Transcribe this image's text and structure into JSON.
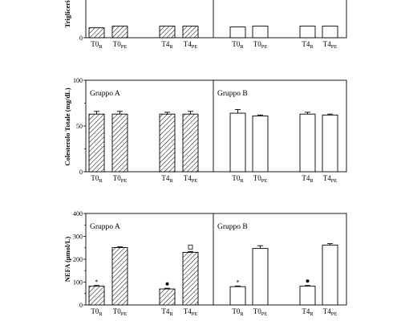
{
  "chart_data": [
    {
      "type": "bar",
      "ylabel": "Trigliceridi",
      "ylim_min": 0,
      "y_ticks": [
        0
      ],
      "group_labels": [
        "",
        ""
      ],
      "categories": [
        "T0",
        "T0",
        "T4",
        "T4"
      ],
      "category_subs": [
        "R",
        "PE",
        "R",
        "PE"
      ],
      "groups": [
        {
          "name": "A",
          "values": [
            12,
            14,
            14,
            14
          ],
          "errors": [
            0,
            0,
            0,
            0
          ],
          "markers": [
            "",
            "",
            "",
            ""
          ]
        },
        {
          "name": "B",
          "values": [
            13,
            14,
            14,
            14
          ],
          "errors": [
            0,
            0,
            0,
            0
          ],
          "markers": [
            "",
            "",
            "",
            ""
          ]
        }
      ],
      "cropped_top": true
    },
    {
      "type": "bar",
      "ylabel": "Colesterolo Totale (mg/dL)",
      "ylim": [
        0,
        100
      ],
      "y_ticks": [
        0,
        50,
        100
      ],
      "group_labels": [
        "Gruppo A",
        "Gruppo B"
      ],
      "categories": [
        "T0",
        "T0",
        "T4",
        "T4"
      ],
      "category_subs": [
        "R",
        "PE",
        "R",
        "PE"
      ],
      "groups": [
        {
          "name": "Gruppo A",
          "values": [
            63,
            63,
            63,
            63
          ],
          "errors": [
            3,
            3,
            2,
            3
          ],
          "markers": [
            "",
            "",
            "",
            ""
          ]
        },
        {
          "name": "Gruppo B",
          "values": [
            64,
            61,
            63,
            62
          ],
          "errors": [
            4,
            1,
            2,
            1
          ],
          "markers": [
            "",
            "",
            "",
            ""
          ]
        }
      ]
    },
    {
      "type": "bar",
      "ylabel": "NEFA (µmol/L)",
      "ylim": [
        0,
        400
      ],
      "y_ticks": [
        0,
        100,
        200,
        300,
        400
      ],
      "group_labels": [
        "Gruppo A",
        "Gruppo B"
      ],
      "categories": [
        "T0",
        "T0",
        "T4",
        "T4"
      ],
      "category_subs": [
        "R",
        "PE",
        "R",
        "PE"
      ],
      "groups": [
        {
          "name": "Gruppo A",
          "values": [
            82,
            251,
            70,
            230
          ],
          "errors": [
            3,
            3,
            3,
            4
          ],
          "markers": [
            "*",
            "",
            "●",
            "□"
          ]
        },
        {
          "name": "Gruppo B",
          "values": [
            80,
            247,
            82,
            262
          ],
          "errors": [
            3,
            12,
            3,
            6
          ],
          "markers": [
            "*",
            "",
            "●",
            ""
          ]
        }
      ]
    }
  ],
  "colors": {
    "axis": "#000000",
    "hatch": "#000000",
    "bar_fill_b": "#ffffff"
  }
}
